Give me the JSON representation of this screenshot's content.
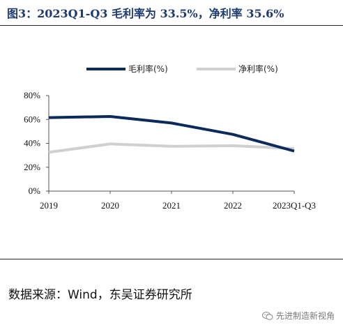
{
  "header": {
    "title": "图3：2023Q1-Q3 毛利率为 33.5%，净利率 35.6%"
  },
  "footer": {
    "source": "数据来源：Wind，东吴证券研究所",
    "watermark": "先进制造新视角",
    "watermark_icon": "wechat-icon"
  },
  "chart_data": {
    "type": "line",
    "categories": [
      "2019",
      "2020",
      "2021",
      "2022",
      "2023Q1-Q3"
    ],
    "series": [
      {
        "name": "毛利率(%)",
        "color": "#0d2a5c",
        "values": [
          61.5,
          62.5,
          57.0,
          47.5,
          33.5
        ]
      },
      {
        "name": "净利率(%)",
        "color": "#d0d0d0",
        "values": [
          32.5,
          39.5,
          37.5,
          38.0,
          35.6
        ]
      }
    ],
    "yticks": [
      "0%",
      "20%",
      "40%",
      "60%",
      "80%"
    ],
    "ylim": [
      0,
      80
    ],
    "legend": "top",
    "grid": false
  }
}
